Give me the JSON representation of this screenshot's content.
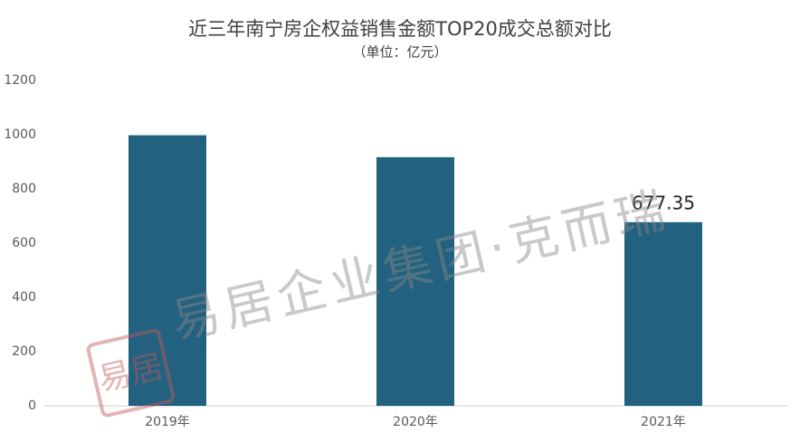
{
  "chart_data": {
    "type": "bar",
    "title": "近三年南宁房企权益销售金额TOP20成交总额对比",
    "subtitle": "（单位：亿元）",
    "categories": [
      "2019年",
      "2020年",
      "2021年"
    ],
    "values": [
      998,
      917,
      677.35
    ],
    "value_labels": [
      null,
      null,
      "677.35"
    ],
    "color": "#22617f",
    "ylim": [
      0,
      1200
    ],
    "yticks": [
      0,
      200,
      400,
      600,
      800,
      1000,
      1200
    ],
    "grid": false,
    "watermark": "易居企业集团·克而瑞",
    "seal": "易居"
  }
}
